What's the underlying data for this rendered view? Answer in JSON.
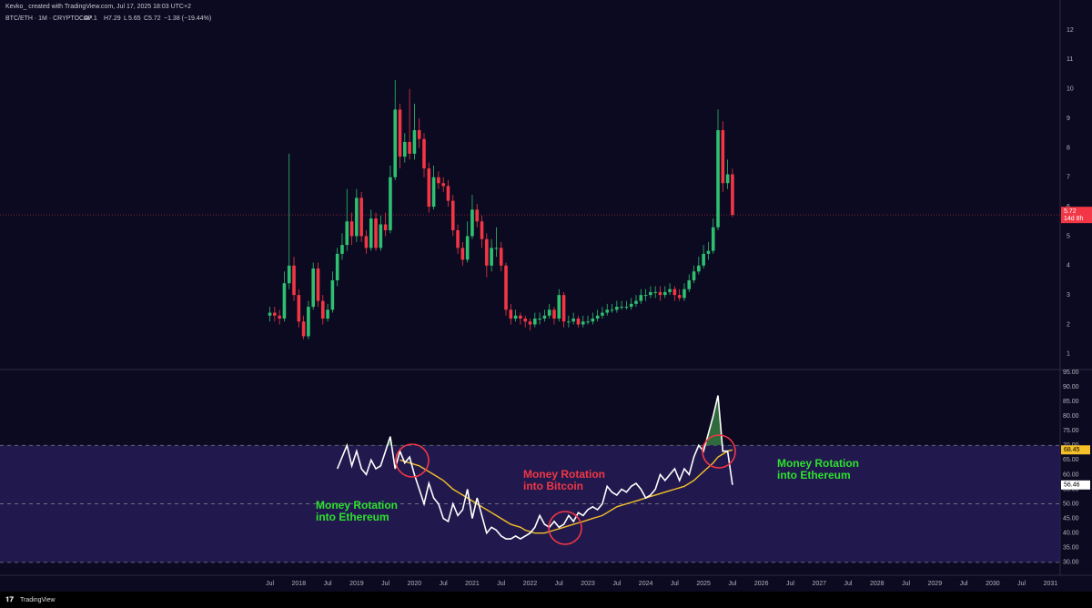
{
  "chart_data": {
    "type": "candlestick",
    "credit": "Kevko_ created with TradingView.com, Jul 17, 2025 18:03 UTC+2",
    "title": "BTC/ETH · 1M · CRYPTOCAP",
    "ohlc_labels": [
      "O",
      "H",
      "L",
      "C"
    ],
    "change": "−1.38 (−19.44%)",
    "countdown": "14d 8h",
    "brand": "TradingView",
    "up_color": "#2fbf71",
    "down_color": "#f23645",
    "x": [
      "2017-07",
      "2017-08",
      "2017-09",
      "2017-10",
      "2017-11",
      "2017-12",
      "2018-01",
      "2018-02",
      "2018-03",
      "2018-04",
      "2018-05",
      "2018-06",
      "2018-07",
      "2018-08",
      "2018-09",
      "2018-10",
      "2018-11",
      "2018-12",
      "2019-01",
      "2019-02",
      "2019-03",
      "2019-04",
      "2019-05",
      "2019-06",
      "2019-07",
      "2019-08",
      "2019-09",
      "2019-10",
      "2019-11",
      "2019-12",
      "2020-01",
      "2020-02",
      "2020-03",
      "2020-04",
      "2020-05",
      "2020-06",
      "2020-07",
      "2020-08",
      "2020-09",
      "2020-10",
      "2020-11",
      "2020-12",
      "2021-01",
      "2021-02",
      "2021-03",
      "2021-04",
      "2021-05",
      "2021-06",
      "2021-07",
      "2021-08",
      "2021-09",
      "2021-10",
      "2021-11",
      "2021-12",
      "2022-01",
      "2022-02",
      "2022-03",
      "2022-04",
      "2022-05",
      "2022-06",
      "2022-07",
      "2022-08",
      "2022-09",
      "2022-10",
      "2022-11",
      "2022-12",
      "2023-01",
      "2023-02",
      "2023-03",
      "2023-04",
      "2023-05",
      "2023-06",
      "2023-07",
      "2023-08",
      "2023-09",
      "2023-10",
      "2023-11",
      "2023-12",
      "2024-01",
      "2024-02",
      "2024-03",
      "2024-04",
      "2024-05",
      "2024-06",
      "2024-07",
      "2024-08",
      "2024-09",
      "2024-10",
      "2024-11",
      "2024-12",
      "2025-01",
      "2025-02",
      "2025-03",
      "2025-04",
      "2025-05",
      "2025-06",
      "2025-07"
    ],
    "open": [
      2.3,
      2.4,
      2.3,
      2.2,
      3.4,
      4.0,
      3.0,
      2.1,
      1.6,
      2.6,
      3.9,
      2.8,
      2.2,
      2.5,
      3.5,
      4.4,
      4.7,
      5.5,
      5.0,
      6.3,
      5.0,
      4.6,
      5.6,
      4.6,
      5.4,
      5.2,
      7.0,
      9.3,
      7.7,
      8.2,
      7.8,
      8.6,
      8.3,
      7.3,
      6.0,
      7.0,
      6.8,
      6.7,
      6.2,
      5.2,
      4.6,
      4.2,
      5.0,
      5.9,
      5.5,
      4.9,
      4.0,
      4.6,
      4.6,
      4.0,
      2.5,
      2.2,
      2.3,
      2.2,
      2.1,
      2.0,
      2.2,
      2.2,
      2.3,
      2.5,
      2.2,
      3.0,
      2.1,
      2.1,
      2.2,
      2.0,
      2.1,
      2.1,
      2.2,
      2.3,
      2.4,
      2.5,
      2.5,
      2.6,
      2.6,
      2.6,
      2.7,
      2.8,
      3.0,
      3.0,
      3.1,
      3.1,
      3.0,
      3.1,
      3.2,
      3.0,
      2.9,
      3.2,
      3.5,
      3.8,
      4.0,
      4.4,
      4.5,
      5.3,
      8.6,
      6.8,
      7.1
    ],
    "high": [
      2.6,
      2.6,
      2.5,
      3.8,
      7.8,
      4.3,
      3.2,
      2.3,
      2.8,
      4.1,
      4.1,
      3.0,
      2.7,
      3.8,
      4.6,
      5.1,
      6.6,
      5.8,
      6.6,
      6.5,
      5.2,
      5.9,
      5.8,
      5.7,
      5.8,
      7.4,
      10.3,
      9.5,
      8.5,
      10.0,
      9.5,
      9.0,
      8.5,
      7.5,
      7.4,
      7.2,
      7.0,
      6.9,
      6.4,
      5.4,
      4.8,
      5.5,
      6.4,
      6.1,
      5.7,
      5.1,
      4.9,
      5.3,
      4.8,
      4.1,
      2.7,
      2.5,
      2.4,
      2.3,
      2.2,
      2.4,
      2.4,
      2.5,
      2.7,
      2.6,
      3.2,
      3.1,
      2.3,
      2.4,
      2.3,
      2.3,
      2.3,
      2.4,
      2.5,
      2.6,
      2.7,
      2.7,
      2.8,
      2.8,
      2.8,
      2.9,
      3.0,
      3.2,
      3.2,
      3.3,
      3.3,
      3.3,
      3.3,
      3.4,
      3.3,
      3.2,
      3.4,
      3.7,
      4.0,
      4.3,
      4.7,
      4.8,
      5.6,
      9.3,
      8.9,
      7.6,
      7.29
    ],
    "low": [
      2.1,
      2.1,
      2.0,
      2.1,
      3.2,
      2.8,
      1.9,
      1.5,
      1.5,
      2.5,
      2.6,
      2.0,
      2.1,
      2.4,
      3.3,
      4.2,
      4.5,
      4.7,
      4.8,
      4.8,
      4.4,
      4.5,
      4.5,
      4.5,
      5.0,
      5.1,
      6.9,
      7.3,
      7.5,
      7.6,
      7.6,
      8.0,
      7.0,
      5.8,
      5.9,
      6.6,
      6.5,
      6.0,
      5.0,
      4.4,
      4.0,
      4.1,
      4.9,
      5.3,
      4.6,
      3.6,
      3.8,
      4.3,
      3.8,
      2.3,
      2.0,
      2.1,
      2.0,
      1.9,
      1.8,
      1.9,
      2.0,
      2.1,
      2.2,
      2.0,
      2.1,
      1.9,
      1.9,
      2.0,
      1.9,
      1.9,
      2.0,
      2.0,
      2.1,
      2.2,
      2.3,
      2.4,
      2.4,
      2.5,
      2.5,
      2.5,
      2.6,
      2.7,
      2.8,
      2.9,
      2.9,
      2.8,
      2.9,
      3.0,
      2.8,
      2.8,
      2.8,
      3.1,
      3.4,
      3.7,
      3.9,
      4.2,
      4.4,
      5.2,
      6.5,
      6.6,
      5.65
    ],
    "close": [
      2.4,
      2.3,
      2.2,
      3.4,
      4.0,
      3.0,
      2.1,
      1.6,
      2.6,
      3.9,
      2.8,
      2.2,
      2.5,
      3.5,
      4.4,
      4.7,
      5.5,
      5.0,
      6.3,
      5.0,
      4.6,
      5.6,
      4.6,
      5.4,
      5.2,
      7.0,
      9.3,
      7.7,
      8.2,
      7.8,
      8.6,
      8.3,
      7.3,
      6.0,
      7.0,
      6.8,
      6.7,
      6.2,
      5.2,
      4.6,
      4.2,
      5.0,
      5.9,
      5.5,
      4.9,
      4.0,
      4.6,
      4.6,
      4.0,
      2.5,
      2.2,
      2.3,
      2.2,
      2.1,
      2.0,
      2.2,
      2.2,
      2.3,
      2.5,
      2.2,
      3.0,
      2.1,
      2.1,
      2.2,
      2.0,
      2.1,
      2.1,
      2.2,
      2.3,
      2.4,
      2.5,
      2.5,
      2.6,
      2.6,
      2.6,
      2.7,
      2.8,
      3.0,
      3.0,
      3.1,
      3.1,
      3.0,
      3.1,
      3.2,
      3.0,
      2.9,
      3.2,
      3.5,
      3.8,
      4.0,
      4.4,
      4.5,
      5.3,
      8.6,
      6.8,
      7.1,
      5.72
    ],
    "xlim": [
      "2012-11",
      "2031-03"
    ],
    "xticks": [
      {
        "value": "2017-07",
        "label": "Jul"
      },
      {
        "value": "2018-01",
        "label": "2018"
      },
      {
        "value": "2018-07",
        "label": "Jul"
      },
      {
        "value": "2019-01",
        "label": "2019"
      },
      {
        "value": "2019-07",
        "label": "Jul"
      },
      {
        "value": "2020-01",
        "label": "2020"
      },
      {
        "value": "2020-07",
        "label": "Jul"
      },
      {
        "value": "2021-01",
        "label": "2021"
      },
      {
        "value": "2021-07",
        "label": "Jul"
      },
      {
        "value": "2022-01",
        "label": "2022"
      },
      {
        "value": "2022-07",
        "label": "Jul"
      },
      {
        "value": "2023-01",
        "label": "2023"
      },
      {
        "value": "2023-07",
        "label": "Jul"
      },
      {
        "value": "2024-01",
        "label": "2024"
      },
      {
        "value": "2024-07",
        "label": "Jul"
      },
      {
        "value": "2025-01",
        "label": "2025"
      },
      {
        "value": "2025-07",
        "label": "Jul"
      },
      {
        "value": "2026-01",
        "label": "2026"
      },
      {
        "value": "2026-07",
        "label": "Jul"
      },
      {
        "value": "2027-01",
        "label": "2027"
      },
      {
        "value": "2027-07",
        "label": "Jul"
      },
      {
        "value": "2028-01",
        "label": "2028"
      },
      {
        "value": "2028-07",
        "label": "Jul"
      },
      {
        "value": "2029-01",
        "label": "2029"
      },
      {
        "value": "2029-07",
        "label": "Jul"
      },
      {
        "value": "2030-01",
        "label": "2030"
      },
      {
        "value": "2030-07",
        "label": "Jul"
      },
      {
        "value": "2031-01",
        "label": "2031"
      }
    ],
    "ylim": [
      0.5,
      12.65
    ],
    "yticks": [
      1,
      2,
      3,
      4,
      5,
      6,
      7,
      8,
      9,
      10,
      11,
      12
    ],
    "last_price_line": true,
    "rsi": {
      "ylim": [
        25.6,
        95.6
      ],
      "yticks": [
        {
          "value": 95,
          "label": "95.00"
        },
        {
          "value": 90,
          "label": "90.00"
        },
        {
          "value": 85,
          "label": "85.00"
        },
        {
          "value": 80,
          "label": "80.00"
        },
        {
          "value": 75,
          "label": "75.00"
        },
        {
          "value": 70,
          "label": "70.00"
        },
        {
          "value": 65,
          "label": "65.00"
        },
        {
          "value": 60,
          "label": "60.00"
        },
        {
          "value": 55,
          "label": "55.00"
        },
        {
          "value": 50,
          "label": "50.00"
        },
        {
          "value": 45,
          "label": "45.00"
        },
        {
          "value": 40,
          "label": "40.00"
        },
        {
          "value": 35,
          "label": "35.00"
        },
        {
          "value": 30,
          "label": "30.00"
        }
      ],
      "levels": [
        70,
        50,
        30
      ],
      "band": [
        30,
        70
      ],
      "band_color": "#2a1f5c",
      "overbought_color": "#2f6b3c",
      "line": {
        "color": "#ffffff",
        "values": [
          null,
          null,
          null,
          null,
          null,
          null,
          null,
          null,
          null,
          null,
          null,
          null,
          null,
          null,
          62,
          66,
          70,
          63,
          68,
          62,
          60,
          65,
          62,
          63,
          68,
          73,
          62,
          68,
          64,
          66,
          60,
          55,
          50,
          57,
          52,
          50,
          45,
          44,
          50,
          46,
          48,
          55,
          45,
          52,
          46,
          40,
          42,
          41,
          39,
          38,
          38,
          39,
          38,
          39,
          40,
          42,
          46,
          43,
          42,
          44,
          42,
          43,
          46,
          44,
          47,
          46,
          48,
          49,
          48,
          50,
          56,
          54,
          53,
          55,
          54,
          56,
          57,
          55,
          52,
          53,
          55,
          60,
          58,
          60,
          62,
          58,
          62,
          60,
          66,
          70,
          68,
          74,
          80,
          87,
          68,
          68,
          56.46
        ]
      },
      "ma": {
        "color": "#f5c02a",
        "values": [
          null,
          null,
          null,
          null,
          null,
          null,
          null,
          null,
          null,
          null,
          null,
          null,
          null,
          null,
          null,
          null,
          null,
          null,
          null,
          null,
          null,
          null,
          null,
          null,
          null,
          null,
          null,
          65,
          64.5,
          64,
          63.5,
          63,
          62,
          61,
          60,
          59,
          58,
          56.5,
          55,
          54,
          53,
          52,
          51,
          50,
          49,
          48,
          47,
          46,
          45,
          44,
          43,
          42.5,
          42,
          41,
          40.5,
          40,
          40,
          40,
          40.5,
          41,
          41.5,
          42,
          42.5,
          43,
          43.5,
          44,
          44.5,
          45,
          45.5,
          46,
          47,
          48,
          49,
          49.5,
          50,
          50.5,
          51,
          51.5,
          52,
          52.5,
          53,
          53.5,
          54,
          54.5,
          55,
          55.5,
          56,
          57,
          58,
          59.5,
          61,
          62.5,
          64,
          66,
          67,
          68,
          68.45
        ]
      }
    },
    "annotations": [
      {
        "lines": [
          "Money Rotation",
          "into Ethereum"
        ],
        "color": "#2ee02e"
      },
      {
        "lines": [
          "Money Rotation",
          "into Bitcoin"
        ],
        "color": "#f23645"
      },
      {
        "lines": [
          "Money Rotation",
          "into Ethereum"
        ],
        "color": "#2ee02e"
      }
    ],
    "circle_color": "#f23645"
  }
}
